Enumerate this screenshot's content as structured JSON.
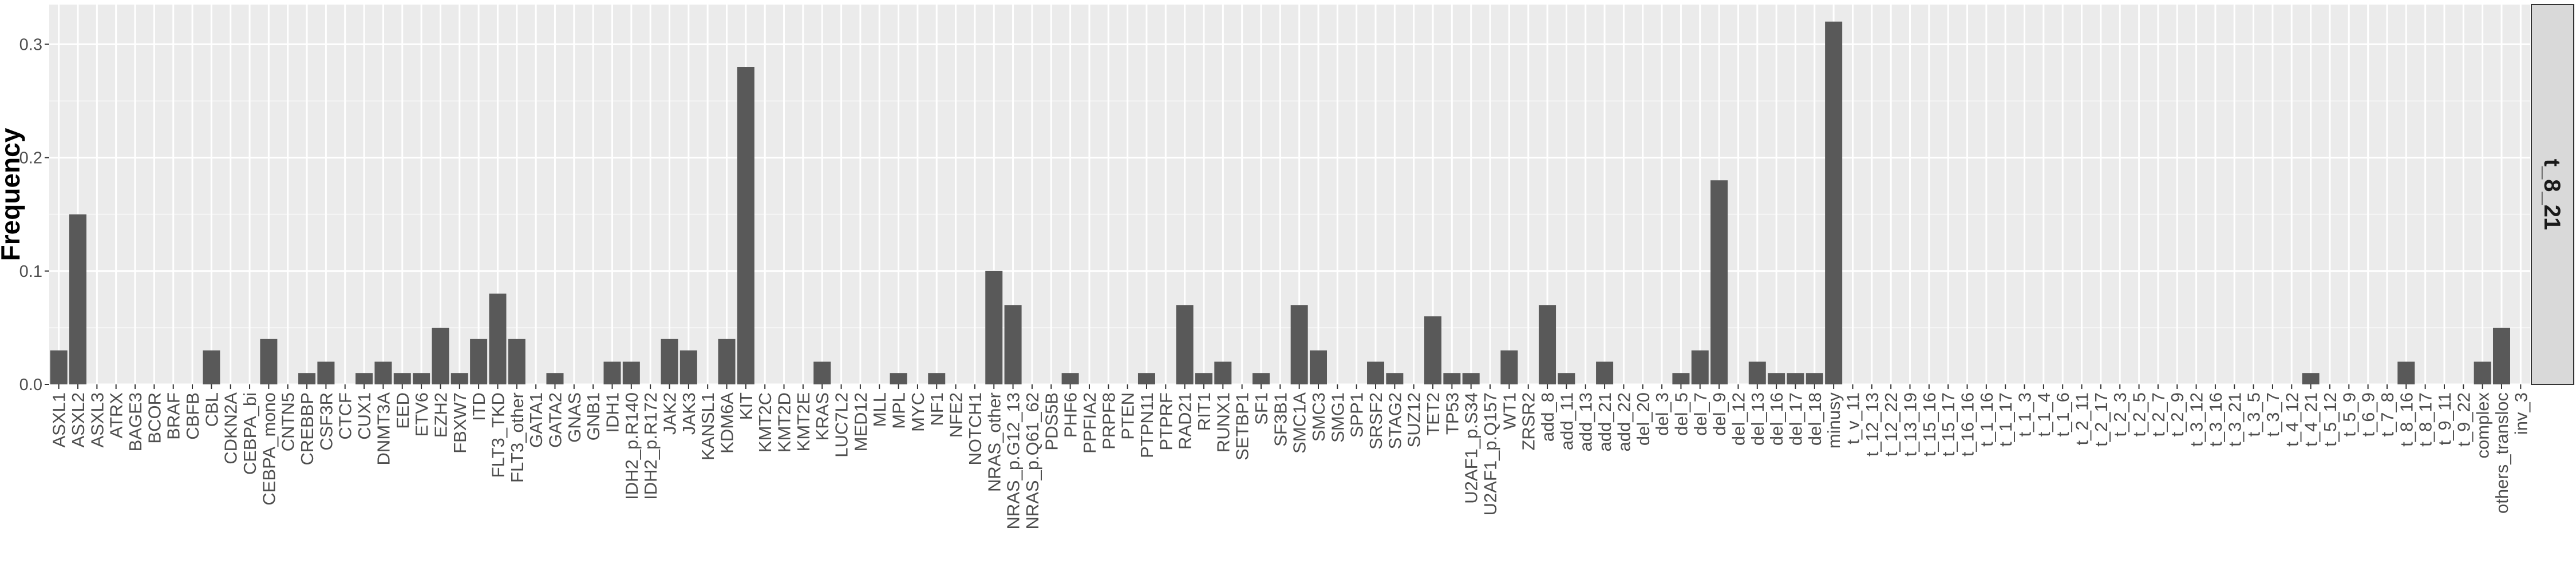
{
  "chart_data": {
    "type": "bar",
    "title": "",
    "xlabel": "",
    "ylabel": "Frequency",
    "ylim": [
      0,
      0.335
    ],
    "yticks": [
      0.0,
      0.1,
      0.2,
      0.3
    ],
    "ytick_labels": [
      "0.0",
      "0.1",
      "0.2",
      "0.3"
    ],
    "facet_label": "t_8_21",
    "grid": true,
    "bar_color": "#595959",
    "panel_color": "#ebebeb",
    "strip_color": "#d9d9d9",
    "categories": [
      "ASXL1",
      "ASXL2",
      "ASXL3",
      "ATRX",
      "BAGE3",
      "BCOR",
      "BRAF",
      "CBFB",
      "CBL",
      "CDKN2A",
      "CEBPA_bi",
      "CEBPA_mono",
      "CNTN5",
      "CREBBP",
      "CSF3R",
      "CTCF",
      "CUX1",
      "DNMT3A",
      "EED",
      "ETV6",
      "EZH2",
      "FBXW7",
      "ITD",
      "FLT3_TKD",
      "FLT3_other",
      "GATA1",
      "GATA2",
      "GNAS",
      "GNB1",
      "IDH1",
      "IDH2_p.R140",
      "IDH2_p.R172",
      "JAK2",
      "JAK3",
      "KANSL1",
      "KDM6A",
      "KIT",
      "KMT2C",
      "KMT2D",
      "KMT2E",
      "KRAS",
      "LUC7L2",
      "MED12",
      "MLL",
      "MPL",
      "MYC",
      "NF1",
      "NFE2",
      "NOTCH1",
      "NRAS_other",
      "NRAS_p.G12_13",
      "NRAS_p.Q61_62",
      "PDS5B",
      "PHF6",
      "PPFIA2",
      "PRPF8",
      "PTEN",
      "PTPN11",
      "PTPRF",
      "RAD21",
      "RIT1",
      "RUNX1",
      "SETBP1",
      "SF1",
      "SF3B1",
      "SMC1A",
      "SMC3",
      "SMG1",
      "SPP1",
      "SRSF2",
      "STAG2",
      "SUZ12",
      "TET2",
      "TP53",
      "U2AF1_p.S34",
      "U2AF1_p.Q157",
      "WT1",
      "ZRSR2",
      "add_8",
      "add_11",
      "add_13",
      "add_21",
      "add_22",
      "del_20",
      "del_3",
      "del_5",
      "del_7",
      "del_9",
      "del_12",
      "del_13",
      "del_16",
      "del_17",
      "del_18",
      "minusy",
      "t_v_11",
      "t_12_13",
      "t_12_22",
      "t_13_19",
      "t_15_16",
      "t_15_17",
      "t_16_16",
      "t_1_16",
      "t_1_17",
      "t_1_3",
      "t_1_4",
      "t_1_6",
      "t_2_11",
      "t_2_17",
      "t_2_3",
      "t_2_5",
      "t_2_7",
      "t_2_9",
      "t_3_12",
      "t_3_16",
      "t_3_21",
      "t_3_5",
      "t_3_7",
      "t_4_12",
      "t_4_21",
      "t_5_12",
      "t_5_9",
      "t_6_9",
      "t_7_8",
      "t_8_16",
      "t_8_17",
      "t_9_11",
      "t_9_22",
      "complex",
      "others_transloc",
      "inv_3"
    ],
    "values": [
      0.03,
      0.15,
      0,
      0,
      0,
      0,
      0,
      0,
      0.03,
      0,
      0,
      0.04,
      0,
      0.01,
      0.02,
      0,
      0.01,
      0.02,
      0.01,
      0.01,
      0.05,
      0.01,
      0.04,
      0.08,
      0.04,
      0,
      0.01,
      0,
      0,
      0.02,
      0.02,
      0,
      0.04,
      0.03,
      0,
      0.04,
      0.28,
      0,
      0,
      0,
      0.02,
      0,
      0,
      0,
      0.01,
      0,
      0.01,
      0,
      0,
      0.1,
      0.07,
      0,
      0,
      0.01,
      0,
      0,
      0,
      0.01,
      0,
      0.07,
      0.01,
      0.02,
      0,
      0.01,
      0,
      0.07,
      0.03,
      0,
      0,
      0.02,
      0.01,
      0,
      0.06,
      0.01,
      0.01,
      0,
      0.03,
      0,
      0.07,
      0.01,
      0,
      0.02,
      0,
      0,
      0,
      0.01,
      0.03,
      0.18,
      0,
      0.02,
      0.01,
      0.01,
      0.01,
      0.32,
      0,
      0,
      0,
      0,
      0,
      0,
      0,
      0,
      0,
      0,
      0,
      0,
      0,
      0,
      0,
      0,
      0,
      0,
      0,
      0,
      0,
      0,
      0,
      0,
      0.01,
      0,
      0,
      0,
      0,
      0.02,
      0,
      0,
      0,
      0.02,
      0.05,
      0
    ]
  }
}
